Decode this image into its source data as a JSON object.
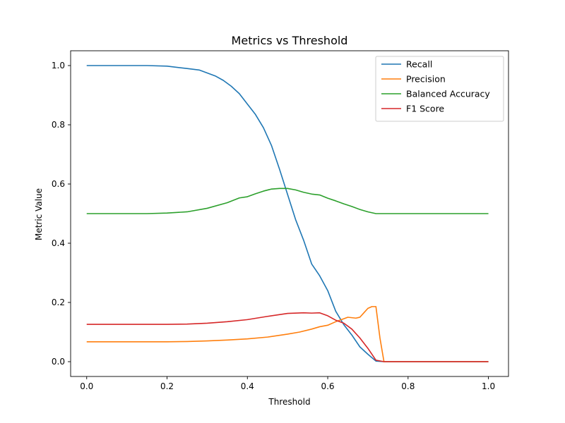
{
  "chart_data": {
    "type": "line",
    "title": "Metrics vs Threshold",
    "xlabel": "Threshold",
    "ylabel": "Metric Value",
    "xlim": [
      -0.04,
      1.05
    ],
    "ylim": [
      -0.05,
      1.05
    ],
    "xticks": [
      0.0,
      0.2,
      0.4,
      0.6,
      0.8,
      1.0
    ],
    "yticks": [
      0.0,
      0.2,
      0.4,
      0.6,
      0.8,
      1.0
    ],
    "xtick_labels": [
      "0.0",
      "0.2",
      "0.4",
      "0.6",
      "0.8",
      "1.0"
    ],
    "ytick_labels": [
      "0.0",
      "0.2",
      "0.4",
      "0.6",
      "0.8",
      "1.0"
    ],
    "grid": false,
    "legend_position": "top-right",
    "series": [
      {
        "name": "Recall",
        "color": "#1f77b4",
        "points": [
          [
            0.0,
            1.0
          ],
          [
            0.1,
            1.0
          ],
          [
            0.15,
            1.0
          ],
          [
            0.2,
            0.998
          ],
          [
            0.25,
            0.99
          ],
          [
            0.28,
            0.985
          ],
          [
            0.3,
            0.975
          ],
          [
            0.32,
            0.965
          ],
          [
            0.34,
            0.95
          ],
          [
            0.36,
            0.93
          ],
          [
            0.38,
            0.905
          ],
          [
            0.4,
            0.87
          ],
          [
            0.42,
            0.835
          ],
          [
            0.44,
            0.79
          ],
          [
            0.46,
            0.73
          ],
          [
            0.48,
            0.65
          ],
          [
            0.5,
            0.565
          ],
          [
            0.52,
            0.48
          ],
          [
            0.54,
            0.41
          ],
          [
            0.56,
            0.33
          ],
          [
            0.58,
            0.29
          ],
          [
            0.6,
            0.24
          ],
          [
            0.62,
            0.17
          ],
          [
            0.64,
            0.125
          ],
          [
            0.66,
            0.09
          ],
          [
            0.68,
            0.05
          ],
          [
            0.7,
            0.025
          ],
          [
            0.72,
            0.002
          ],
          [
            0.74,
            0.0
          ],
          [
            0.8,
            0.0
          ],
          [
            1.0,
            0.0
          ]
        ]
      },
      {
        "name": "Precision",
        "color": "#ff7f0e",
        "points": [
          [
            0.0,
            0.067
          ],
          [
            0.1,
            0.067
          ],
          [
            0.2,
            0.067
          ],
          [
            0.25,
            0.068
          ],
          [
            0.3,
            0.07
          ],
          [
            0.35,
            0.073
          ],
          [
            0.4,
            0.077
          ],
          [
            0.45,
            0.083
          ],
          [
            0.5,
            0.093
          ],
          [
            0.53,
            0.1
          ],
          [
            0.56,
            0.11
          ],
          [
            0.58,
            0.118
          ],
          [
            0.6,
            0.123
          ],
          [
            0.62,
            0.135
          ],
          [
            0.64,
            0.145
          ],
          [
            0.65,
            0.15
          ],
          [
            0.67,
            0.147
          ],
          [
            0.68,
            0.15
          ],
          [
            0.69,
            0.165
          ],
          [
            0.7,
            0.18
          ],
          [
            0.71,
            0.186
          ],
          [
            0.72,
            0.186
          ],
          [
            0.73,
            0.08
          ],
          [
            0.74,
            0.0
          ],
          [
            0.8,
            0.0
          ],
          [
            1.0,
            0.0
          ]
        ]
      },
      {
        "name": "Balanced Accuracy",
        "color": "#2ca02c",
        "points": [
          [
            0.0,
            0.5
          ],
          [
            0.15,
            0.5
          ],
          [
            0.2,
            0.502
          ],
          [
            0.25,
            0.506
          ],
          [
            0.3,
            0.518
          ],
          [
            0.35,
            0.537
          ],
          [
            0.38,
            0.553
          ],
          [
            0.4,
            0.557
          ],
          [
            0.42,
            0.567
          ],
          [
            0.44,
            0.576
          ],
          [
            0.46,
            0.583
          ],
          [
            0.48,
            0.585
          ],
          [
            0.5,
            0.585
          ],
          [
            0.52,
            0.58
          ],
          [
            0.54,
            0.572
          ],
          [
            0.56,
            0.566
          ],
          [
            0.58,
            0.563
          ],
          [
            0.6,
            0.552
          ],
          [
            0.62,
            0.543
          ],
          [
            0.64,
            0.533
          ],
          [
            0.66,
            0.524
          ],
          [
            0.68,
            0.514
          ],
          [
            0.7,
            0.506
          ],
          [
            0.72,
            0.5
          ],
          [
            0.8,
            0.5
          ],
          [
            1.0,
            0.5
          ]
        ]
      },
      {
        "name": "F1 Score",
        "color": "#d62728",
        "points": [
          [
            0.0,
            0.126
          ],
          [
            0.2,
            0.126
          ],
          [
            0.25,
            0.127
          ],
          [
            0.3,
            0.13
          ],
          [
            0.35,
            0.135
          ],
          [
            0.4,
            0.142
          ],
          [
            0.45,
            0.153
          ],
          [
            0.5,
            0.163
          ],
          [
            0.54,
            0.165
          ],
          [
            0.56,
            0.164
          ],
          [
            0.58,
            0.165
          ],
          [
            0.6,
            0.155
          ],
          [
            0.62,
            0.14
          ],
          [
            0.64,
            0.13
          ],
          [
            0.66,
            0.11
          ],
          [
            0.68,
            0.08
          ],
          [
            0.7,
            0.045
          ],
          [
            0.72,
            0.005
          ],
          [
            0.74,
            0.0
          ],
          [
            0.8,
            0.0
          ],
          [
            1.0,
            0.0
          ]
        ]
      }
    ]
  }
}
